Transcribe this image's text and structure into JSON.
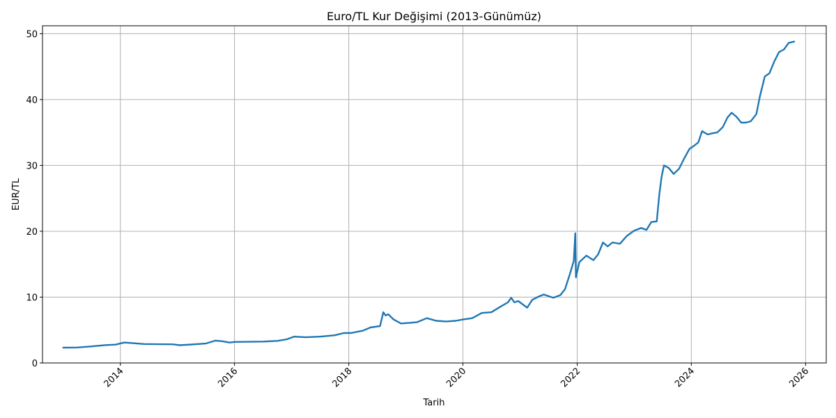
{
  "chart_data": {
    "type": "line",
    "title": "Euro/TL Kur Değişimi (2013-Günümüz)",
    "xlabel": "Tarih",
    "ylabel": "EUR/TL",
    "xlim": [
      "2012-08-21",
      "2026-05-13"
    ],
    "ylim": [
      0,
      51.2
    ],
    "x_ticks": [
      "2014",
      "2016",
      "2018",
      "2020",
      "2022",
      "2024",
      "2026"
    ],
    "y_ticks": [
      "0",
      "10",
      "20",
      "30",
      "40",
      "50"
    ],
    "grid": true,
    "line_color": "#1f77b4",
    "series": [
      {
        "points": [
          [
            "2013-01-01",
            2.33
          ],
          [
            "2013-04-01",
            2.35
          ],
          [
            "2013-07-01",
            2.52
          ],
          [
            "2013-10-01",
            2.72
          ],
          [
            "2013-12-01",
            2.78
          ],
          [
            "2014-01-25",
            3.1
          ],
          [
            "2014-03-01",
            3.05
          ],
          [
            "2014-06-01",
            2.88
          ],
          [
            "2014-09-01",
            2.85
          ],
          [
            "2014-12-01",
            2.83
          ],
          [
            "2015-01-15",
            2.7
          ],
          [
            "2015-04-01",
            2.8
          ],
          [
            "2015-07-01",
            2.95
          ],
          [
            "2015-09-01",
            3.4
          ],
          [
            "2015-10-15",
            3.3
          ],
          [
            "2015-12-01",
            3.1
          ],
          [
            "2016-01-01",
            3.2
          ],
          [
            "2016-04-01",
            3.22
          ],
          [
            "2016-07-01",
            3.25
          ],
          [
            "2016-10-01",
            3.35
          ],
          [
            "2016-12-01",
            3.6
          ],
          [
            "2017-01-15",
            4.0
          ],
          [
            "2017-04-01",
            3.9
          ],
          [
            "2017-07-01",
            4.0
          ],
          [
            "2017-10-01",
            4.2
          ],
          [
            "2017-12-01",
            4.55
          ],
          [
            "2018-01-15",
            4.55
          ],
          [
            "2018-04-01",
            4.9
          ],
          [
            "2018-05-20",
            5.4
          ],
          [
            "2018-07-20",
            5.6
          ],
          [
            "2018-08-10",
            7.7
          ],
          [
            "2018-08-25",
            7.2
          ],
          [
            "2018-09-10",
            7.4
          ],
          [
            "2018-10-15",
            6.6
          ],
          [
            "2018-12-01",
            6.0
          ],
          [
            "2019-02-01",
            6.1
          ],
          [
            "2019-03-15",
            6.2
          ],
          [
            "2019-05-15",
            6.8
          ],
          [
            "2019-07-15",
            6.4
          ],
          [
            "2019-09-15",
            6.3
          ],
          [
            "2019-11-15",
            6.4
          ],
          [
            "2020-01-01",
            6.6
          ],
          [
            "2020-03-01",
            6.8
          ],
          [
            "2020-05-01",
            7.6
          ],
          [
            "2020-07-01",
            7.7
          ],
          [
            "2020-09-01",
            8.6
          ],
          [
            "2020-10-15",
            9.2
          ],
          [
            "2020-11-05",
            9.9
          ],
          [
            "2020-11-25",
            9.2
          ],
          [
            "2020-12-20",
            9.4
          ],
          [
            "2021-02-15",
            8.4
          ],
          [
            "2021-03-20",
            9.6
          ],
          [
            "2021-05-01",
            10.1
          ],
          [
            "2021-06-01",
            10.4
          ],
          [
            "2021-08-01",
            9.9
          ],
          [
            "2021-09-15",
            10.3
          ],
          [
            "2021-10-15",
            11.2
          ],
          [
            "2021-11-15",
            13.5
          ],
          [
            "2021-12-10",
            15.5
          ],
          [
            "2021-12-20",
            19.7
          ],
          [
            "2021-12-24",
            13.0
          ],
          [
            "2022-01-15",
            15.3
          ],
          [
            "2022-03-01",
            16.3
          ],
          [
            "2022-04-15",
            15.6
          ],
          [
            "2022-05-15",
            16.5
          ],
          [
            "2022-06-15",
            18.3
          ],
          [
            "2022-07-15",
            17.7
          ],
          [
            "2022-08-15",
            18.3
          ],
          [
            "2022-10-01",
            18.1
          ],
          [
            "2022-11-15",
            19.3
          ],
          [
            "2023-01-01",
            20.1
          ],
          [
            "2023-02-15",
            20.5
          ],
          [
            "2023-03-20",
            20.2
          ],
          [
            "2023-04-20",
            21.4
          ],
          [
            "2023-05-25",
            21.5
          ],
          [
            "2023-06-10",
            25.5
          ],
          [
            "2023-06-25",
            28.3
          ],
          [
            "2023-07-10",
            30.0
          ],
          [
            "2023-08-10",
            29.6
          ],
          [
            "2023-09-10",
            28.7
          ],
          [
            "2023-10-15",
            29.5
          ],
          [
            "2023-11-15",
            31.0
          ],
          [
            "2023-12-20",
            32.5
          ],
          [
            "2024-01-20",
            33.0
          ],
          [
            "2024-02-15",
            33.5
          ],
          [
            "2024-03-10",
            35.2
          ],
          [
            "2024-04-15",
            34.7
          ],
          [
            "2024-05-20",
            34.9
          ],
          [
            "2024-06-15",
            35.0
          ],
          [
            "2024-07-20",
            35.8
          ],
          [
            "2024-08-20",
            37.3
          ],
          [
            "2024-09-15",
            38.0
          ],
          [
            "2024-10-15",
            37.4
          ],
          [
            "2024-11-15",
            36.5
          ],
          [
            "2024-12-15",
            36.5
          ],
          [
            "2025-01-15",
            36.7
          ],
          [
            "2025-02-20",
            37.8
          ],
          [
            "2025-03-15",
            40.5
          ],
          [
            "2025-04-15",
            43.5
          ],
          [
            "2025-05-15",
            44.0
          ],
          [
            "2025-06-15",
            45.8
          ],
          [
            "2025-07-15",
            47.2
          ],
          [
            "2025-08-15",
            47.6
          ],
          [
            "2025-09-15",
            48.6
          ],
          [
            "2025-10-20",
            48.8
          ]
        ]
      }
    ]
  }
}
